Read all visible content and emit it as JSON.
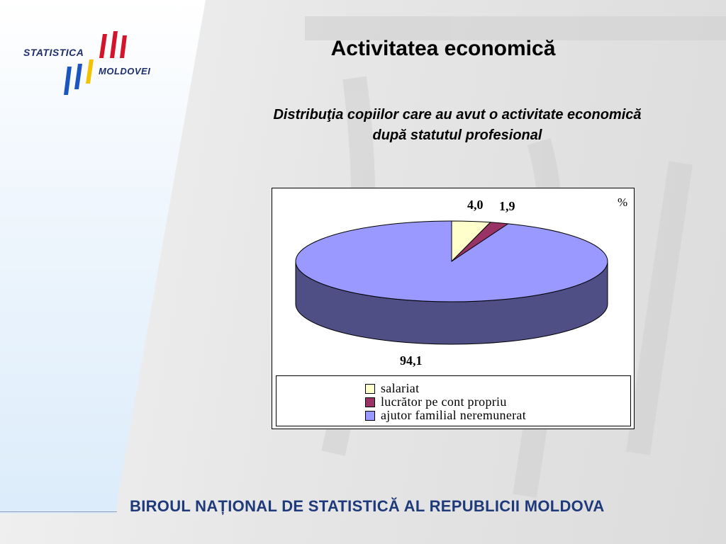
{
  "brand": {
    "logo_line1": "STATISTICA",
    "logo_line2": "MOLDOVEI",
    "colors": {
      "blue": "#1a55c0",
      "yellow": "#f4c300",
      "red": "#d4142a",
      "navy": "#1f2f6b"
    }
  },
  "slide": {
    "title": "Activitatea economică",
    "subtitle_line1": "Distribuţia copiilor care au avut o activitate economică",
    "subtitle_line2": "după statutul profesional"
  },
  "footer": {
    "text": "BIROUL NAȚIONAL DE STATISTICĂ AL REPUBLICII MOLDOVA"
  },
  "chart_data": {
    "type": "pie",
    "unit_label": "%",
    "legend_position": "bottom",
    "series": [
      {
        "name": "salariat",
        "value": 4.0,
        "label": "4,0",
        "color": "#ffffcc",
        "dark": "#cccc99"
      },
      {
        "name": "lucrător pe cont propriu",
        "value": 1.9,
        "label": "1,9",
        "color": "#993366",
        "dark": "#66223f"
      },
      {
        "name": "ajutor familial neremunerat",
        "value": 94.1,
        "label": "94,1",
        "color": "#9999ff",
        "dark": "#4f4f86"
      }
    ]
  }
}
